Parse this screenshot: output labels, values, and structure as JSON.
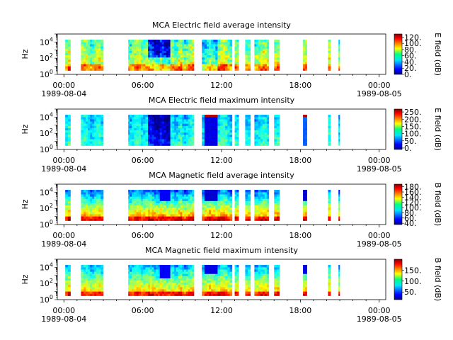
{
  "chart_data": [
    {
      "type": "heatmap",
      "title": "MCA  Electric field average intensity",
      "ylabel": "Hz",
      "ylim": [
        1,
        100000
      ],
      "y_scale": "log",
      "y_ticks": [
        {
          "base": "10",
          "exp": "0"
        },
        {
          "base": "10",
          "exp": "2"
        },
        {
          "base": "10",
          "exp": "4"
        }
      ],
      "x_ticks": [
        {
          "time": "00:00",
          "date": "1989-08-04"
        },
        {
          "time": "06:00",
          "date": ""
        },
        {
          "time": "12:00",
          "date": ""
        },
        {
          "time": "18:00",
          "date": ""
        },
        {
          "time": "00:00",
          "date": "1989-08-05"
        }
      ],
      "xlim_hours": [
        -0.5,
        24.5
      ],
      "colorbar": {
        "label": "E field (dB)",
        "range": [
          0,
          130
        ],
        "ticks": [
          "0.",
          "20.",
          "40.",
          "60.",
          "80.",
          "100.",
          "120."
        ]
      },
      "variant": "e_avg",
      "data_intervals_hours": [
        [
          0.1,
          0.5
        ],
        [
          1.3,
          1.5
        ],
        [
          1.5,
          2.8
        ],
        [
          2.8,
          3.0
        ],
        [
          4.9,
          5.0
        ],
        [
          5.0,
          6.2
        ],
        [
          6.2,
          6.4
        ],
        [
          6.4,
          7.3
        ],
        [
          7.3,
          8.1
        ],
        [
          8.1,
          9.0
        ],
        [
          9.0,
          9.9
        ],
        [
          10.5,
          10.7
        ],
        [
          10.7,
          11.7
        ],
        [
          11.7,
          12.1
        ],
        [
          12.1,
          12.8
        ],
        [
          13.0,
          13.3
        ],
        [
          13.8,
          14.2
        ],
        [
          14.5,
          14.8
        ],
        [
          14.8,
          15.6
        ],
        [
          16.0,
          16.4
        ],
        [
          18.2,
          18.5
        ],
        [
          20.1,
          20.3
        ],
        [
          20.9,
          21.0
        ]
      ]
    },
    {
      "type": "heatmap",
      "title": "MCA  Electric field maximum intensity",
      "ylabel": "Hz",
      "ylim": [
        1,
        100000
      ],
      "y_scale": "log",
      "y_ticks": [
        {
          "base": "10",
          "exp": "0"
        },
        {
          "base": "10",
          "exp": "2"
        },
        {
          "base": "10",
          "exp": "4"
        }
      ],
      "x_ticks": [
        {
          "time": "00:00",
          "date": "1989-08-04"
        },
        {
          "time": "06:00",
          "date": ""
        },
        {
          "time": "12:00",
          "date": ""
        },
        {
          "time": "18:00",
          "date": ""
        },
        {
          "time": "00:00",
          "date": "1989-08-05"
        }
      ],
      "xlim_hours": [
        -0.5,
        24.5
      ],
      "colorbar": {
        "label": "E field (dB)",
        "range": [
          -10,
          270
        ],
        "ticks": [
          "0.",
          "50.",
          "100.",
          "150.",
          "200.",
          "250."
        ]
      },
      "variant": "e_max",
      "data_intervals_hours": [
        [
          0.1,
          0.5
        ],
        [
          1.3,
          1.5
        ],
        [
          1.5,
          2.8
        ],
        [
          2.8,
          3.0
        ],
        [
          4.9,
          5.0
        ],
        [
          5.0,
          6.2
        ],
        [
          6.2,
          6.4
        ],
        [
          6.4,
          7.3
        ],
        [
          7.3,
          8.1
        ],
        [
          8.1,
          9.0
        ],
        [
          9.0,
          9.9
        ],
        [
          10.5,
          10.7
        ],
        [
          10.7,
          11.7
        ],
        [
          11.7,
          12.1
        ],
        [
          12.1,
          12.8
        ],
        [
          13.0,
          13.3
        ],
        [
          13.8,
          14.2
        ],
        [
          14.5,
          14.8
        ],
        [
          14.8,
          15.6
        ],
        [
          16.0,
          16.4
        ],
        [
          18.2,
          18.5
        ],
        [
          20.1,
          20.3
        ],
        [
          20.9,
          21.0
        ]
      ]
    },
    {
      "type": "heatmap",
      "title": "MCA  Magnetic field average intensity",
      "ylabel": "Hz",
      "ylim": [
        1,
        100000
      ],
      "y_scale": "log",
      "y_ticks": [
        {
          "base": "10",
          "exp": "0"
        },
        {
          "base": "10",
          "exp": "2"
        },
        {
          "base": "10",
          "exp": "4"
        }
      ],
      "x_ticks": [
        {
          "time": "00:00",
          "date": "1989-08-04"
        },
        {
          "time": "06:00",
          "date": ""
        },
        {
          "time": "12:00",
          "date": ""
        },
        {
          "time": "18:00",
          "date": ""
        },
        {
          "time": "00:00",
          "date": "1989-08-05"
        }
      ],
      "xlim_hours": [
        -0.5,
        24.5
      ],
      "colorbar": {
        "label": "B field (dB)",
        "range": [
          35,
          190
        ],
        "ticks": [
          "40.",
          "60.",
          "80.",
          "100.",
          "120.",
          "140.",
          "160.",
          "180."
        ]
      },
      "variant": "b_avg",
      "data_intervals_hours": [
        [
          0.1,
          0.5
        ],
        [
          1.3,
          1.5
        ],
        [
          1.5,
          2.8
        ],
        [
          2.8,
          3.0
        ],
        [
          4.9,
          5.0
        ],
        [
          5.0,
          6.2
        ],
        [
          6.2,
          6.4
        ],
        [
          6.4,
          7.3
        ],
        [
          7.3,
          8.1
        ],
        [
          8.1,
          9.0
        ],
        [
          9.0,
          9.9
        ],
        [
          10.5,
          10.7
        ],
        [
          10.7,
          11.7
        ],
        [
          11.7,
          12.1
        ],
        [
          12.1,
          12.8
        ],
        [
          13.0,
          13.3
        ],
        [
          13.8,
          14.2
        ],
        [
          14.5,
          14.8
        ],
        [
          14.8,
          15.6
        ],
        [
          16.0,
          16.4
        ],
        [
          18.2,
          18.5
        ],
        [
          20.1,
          20.3
        ],
        [
          20.9,
          21.0
        ]
      ]
    },
    {
      "type": "heatmap",
      "title": "MCA  Magnetic field maximum intensity",
      "ylabel": "Hz",
      "ylim": [
        1,
        100000
      ],
      "y_scale": "log",
      "y_ticks": [
        {
          "base": "10",
          "exp": "0"
        },
        {
          "base": "10",
          "exp": "2"
        },
        {
          "base": "10",
          "exp": "4"
        }
      ],
      "x_ticks": [
        {
          "time": "00:00",
          "date": "1989-08-04"
        },
        {
          "time": "06:00",
          "date": ""
        },
        {
          "time": "12:00",
          "date": ""
        },
        {
          "time": "18:00",
          "date": ""
        },
        {
          "time": "00:00",
          "date": "1989-08-05"
        }
      ],
      "xlim_hours": [
        -0.5,
        24.5
      ],
      "colorbar": {
        "label": "B field (dB)",
        "range": [
          15,
          200
        ],
        "ticks": [
          "50.",
          "100.",
          "150."
        ]
      },
      "variant": "b_max",
      "data_intervals_hours": [
        [
          0.1,
          0.5
        ],
        [
          1.3,
          1.5
        ],
        [
          1.5,
          2.8
        ],
        [
          2.8,
          3.0
        ],
        [
          4.9,
          5.0
        ],
        [
          5.0,
          6.2
        ],
        [
          6.2,
          6.4
        ],
        [
          6.4,
          7.3
        ],
        [
          7.3,
          8.1
        ],
        [
          8.1,
          9.0
        ],
        [
          9.0,
          9.9
        ],
        [
          10.5,
          10.7
        ],
        [
          10.7,
          11.7
        ],
        [
          11.7,
          12.1
        ],
        [
          12.1,
          12.8
        ],
        [
          13.0,
          13.3
        ],
        [
          13.8,
          14.2
        ],
        [
          14.5,
          14.8
        ],
        [
          14.8,
          15.6
        ],
        [
          16.0,
          16.4
        ],
        [
          18.2,
          18.5
        ],
        [
          20.1,
          20.3
        ],
        [
          20.9,
          21.0
        ]
      ]
    }
  ]
}
